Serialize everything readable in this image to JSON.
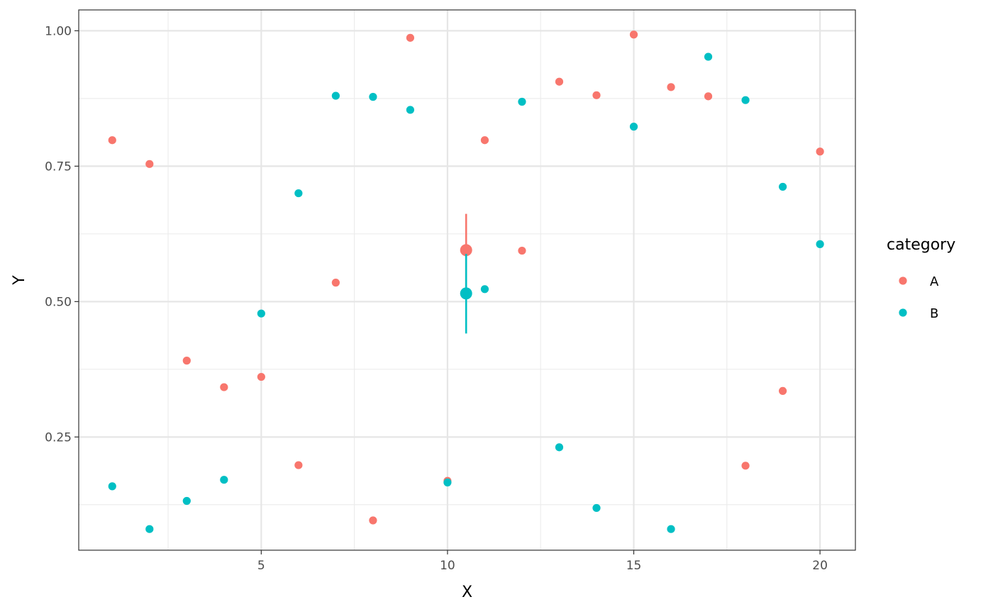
{
  "chart_data": {
    "type": "scatter",
    "title": "",
    "xlabel": "X",
    "ylabel": "Y",
    "xlim": [
      0.1,
      20.95
    ],
    "ylim": [
      0.041,
      1.0385
    ],
    "x_ticks": [
      5,
      10,
      15,
      20
    ],
    "x_tick_labels": [
      "5",
      "10",
      "15",
      "20"
    ],
    "y_ticks": [
      0.25,
      0.5,
      0.75,
      1.0
    ],
    "y_tick_labels": [
      "0.25",
      "0.50",
      "0.75",
      "1.00"
    ],
    "grid": true,
    "legend": {
      "title": "category",
      "position": "right"
    },
    "series": [
      {
        "name": "A",
        "color": "#F8766D",
        "points": [
          {
            "x": 1,
            "y": 0.798
          },
          {
            "x": 2,
            "y": 0.754
          },
          {
            "x": 3,
            "y": 0.391
          },
          {
            "x": 4,
            "y": 0.342
          },
          {
            "x": 5,
            "y": 0.361
          },
          {
            "x": 6,
            "y": 0.198
          },
          {
            "x": 7,
            "y": 0.535
          },
          {
            "x": 8,
            "y": 0.096
          },
          {
            "x": 9,
            "y": 0.987
          },
          {
            "x": 10,
            "y": 0.169
          },
          {
            "x": 11,
            "y": 0.798
          },
          {
            "x": 12,
            "y": 0.594
          },
          {
            "x": 13,
            "y": 0.906
          },
          {
            "x": 14,
            "y": 0.881
          },
          {
            "x": 15,
            "y": 0.993
          },
          {
            "x": 16,
            "y": 0.896
          },
          {
            "x": 17,
            "y": 0.879
          },
          {
            "x": 18,
            "y": 0.197
          },
          {
            "x": 19,
            "y": 0.335
          },
          {
            "x": 20,
            "y": 0.777
          }
        ],
        "summary": {
          "x": 10.5,
          "mean": 0.595,
          "lower": 0.527,
          "upper": 0.662
        }
      },
      {
        "name": "B",
        "color": "#00BFC4",
        "points": [
          {
            "x": 1,
            "y": 0.159
          },
          {
            "x": 2,
            "y": 0.08
          },
          {
            "x": 3,
            "y": 0.132
          },
          {
            "x": 4,
            "y": 0.171
          },
          {
            "x": 5,
            "y": 0.478
          },
          {
            "x": 6,
            "y": 0.7
          },
          {
            "x": 7,
            "y": 0.88
          },
          {
            "x": 8,
            "y": 0.878
          },
          {
            "x": 9,
            "y": 0.854
          },
          {
            "x": 10,
            "y": 0.166
          },
          {
            "x": 11,
            "y": 0.523
          },
          {
            "x": 12,
            "y": 0.869
          },
          {
            "x": 13,
            "y": 0.231
          },
          {
            "x": 14,
            "y": 0.119
          },
          {
            "x": 15,
            "y": 0.823
          },
          {
            "x": 16,
            "y": 0.08
          },
          {
            "x": 17,
            "y": 0.952
          },
          {
            "x": 18,
            "y": 0.872
          },
          {
            "x": 19,
            "y": 0.712
          },
          {
            "x": 20,
            "y": 0.606
          }
        ],
        "summary": {
          "x": 10.5,
          "mean": 0.515,
          "lower": 0.441,
          "upper": 0.588
        }
      }
    ]
  }
}
